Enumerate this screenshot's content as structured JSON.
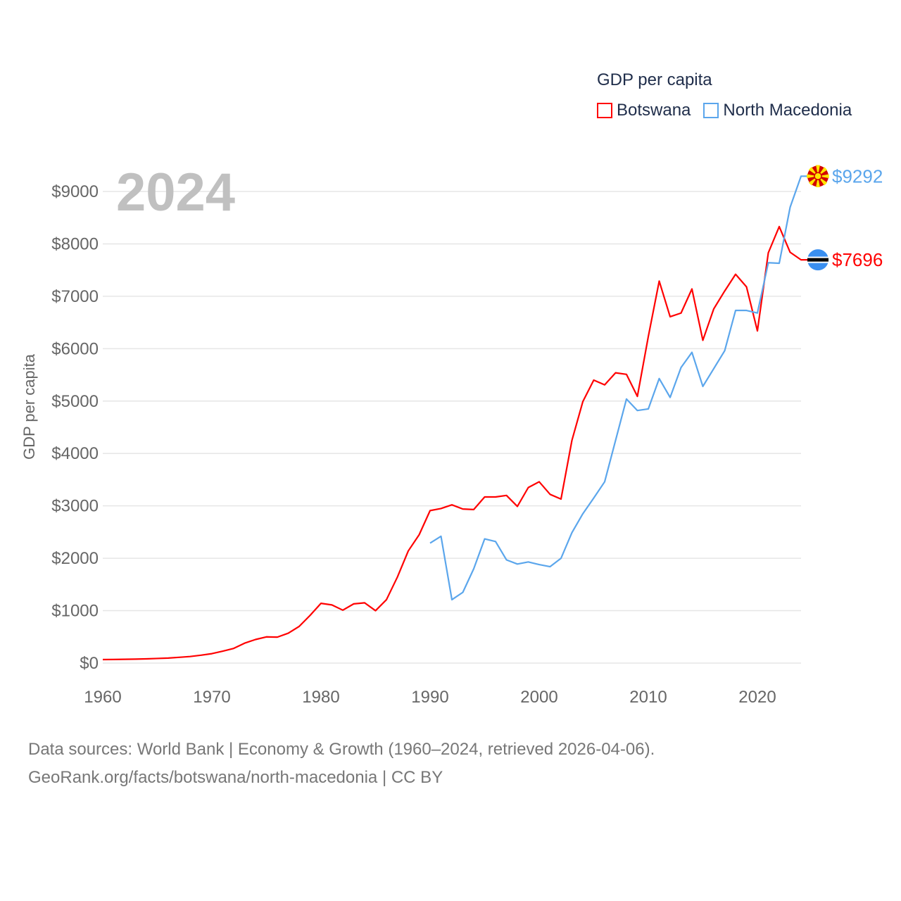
{
  "legend": {
    "title": "GDP per capita",
    "items": [
      {
        "label": "Botswana",
        "color": "#ff0000"
      },
      {
        "label": "North Macedonia",
        "color": "#5ba6ec"
      }
    ]
  },
  "year_label": "2024",
  "footer": {
    "line1": "Data sources: World Bank | Economy & Growth (1960–2024, retrieved 2026-04-06).",
    "line2": "GeoRank.org/facts/botswana/north-macedonia | CC BY"
  },
  "chart_data": {
    "type": "line",
    "title": "GDP per capita",
    "xlabel": "",
    "ylabel": "GDP per capita",
    "xlim": [
      1960,
      2024
    ],
    "ylim": [
      0,
      9500
    ],
    "x_ticks": [
      "1960",
      "1970",
      "1980",
      "1990",
      "2000",
      "2010",
      "2020"
    ],
    "y_ticks": [
      "$0",
      "$1000",
      "$2000",
      "$3000",
      "$4000",
      "$5000",
      "$6000",
      "$7000",
      "$8000",
      "$9000"
    ],
    "grid": true,
    "legend_position": "top-right",
    "series": [
      {
        "name": "Botswana",
        "color": "#ff0000",
        "end_label": "$7696",
        "start_year": 1960,
        "values": [
          67,
          69,
          72,
          76,
          81,
          88,
          96,
          110,
          125,
          150,
          180,
          228,
          280,
          380,
          450,
          500,
          495,
          570,
          700,
          910,
          1140,
          1110,
          1010,
          1130,
          1150,
          1000,
          1210,
          1640,
          2140,
          2450,
          2910,
          2950,
          3020,
          2940,
          2930,
          3170,
          3170,
          3200,
          2990,
          3350,
          3460,
          3220,
          3130,
          4250,
          4990,
          5400,
          5310,
          5540,
          5510,
          5090,
          6230,
          7290,
          6610,
          6680,
          7140,
          6160,
          6760,
          7100,
          7420,
          7180,
          6340,
          7830,
          8330,
          7840,
          7696
        ]
      },
      {
        "name": "North Macedonia",
        "color": "#5ba6ec",
        "end_label": "$9292",
        "start_year": 1990,
        "values": [
          2290,
          2420,
          1210,
          1350,
          1800,
          2370,
          2320,
          1970,
          1890,
          1930,
          1880,
          1840,
          2000,
          2490,
          2850,
          3150,
          3460,
          4250,
          5040,
          4820,
          4850,
          5430,
          5070,
          5640,
          5930,
          5280,
          5620,
          5960,
          6730,
          6730,
          6680,
          7640,
          7630,
          8700,
          9292
        ]
      }
    ]
  }
}
